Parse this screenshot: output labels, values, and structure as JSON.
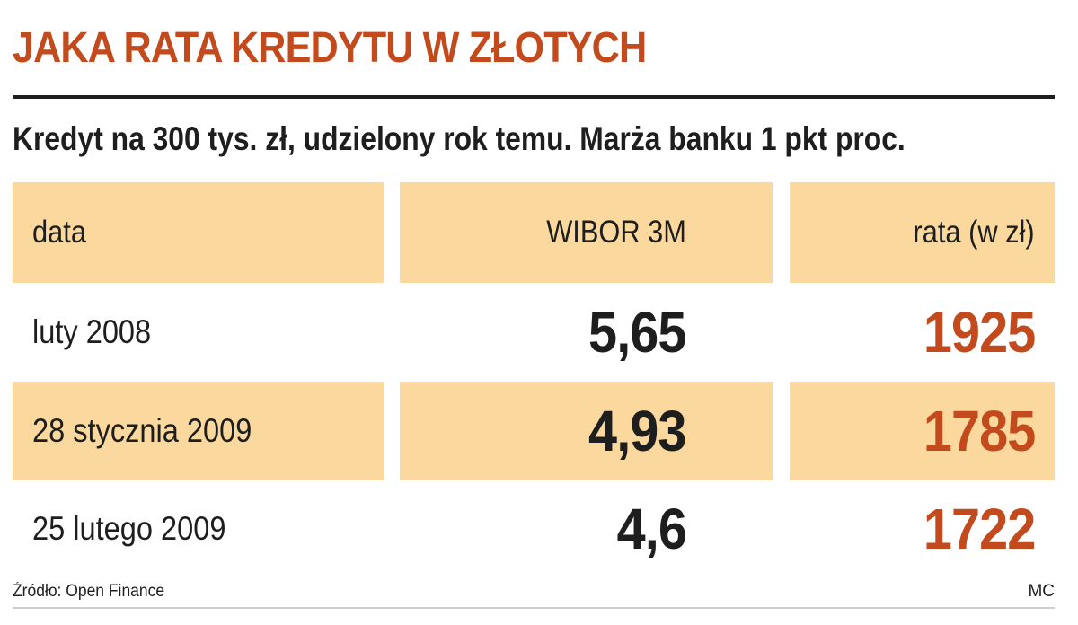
{
  "title": "JAKA RATA KREDYTU W ZŁOTYCH",
  "subtitle": "Kredyt na 300 tys. zł, udzielony rok temu. Marża banku 1 pkt proc.",
  "colors": {
    "accent": "#c24a1c",
    "text": "#1e1e1e",
    "shade": "#fbd99e"
  },
  "chart_data": {
    "type": "table",
    "title": "JAKA RATA KREDYTU W ZŁOTYCH",
    "subtitle": "Kredyt na 300 tys. zł, udzielony rok temu. Marża banku 1 pkt proc.",
    "columns": [
      "data",
      "WIBOR 3M",
      "rata (w zł)"
    ],
    "rows": [
      [
        "luty 2008",
        "5,65",
        "1925"
      ],
      [
        "28 stycznia 2009",
        "4,93",
        "1785"
      ],
      [
        "25 lutego 2009",
        "4,6",
        "1722"
      ]
    ]
  },
  "footer": {
    "source": "Źródło: Open Finance",
    "author": "MC"
  }
}
